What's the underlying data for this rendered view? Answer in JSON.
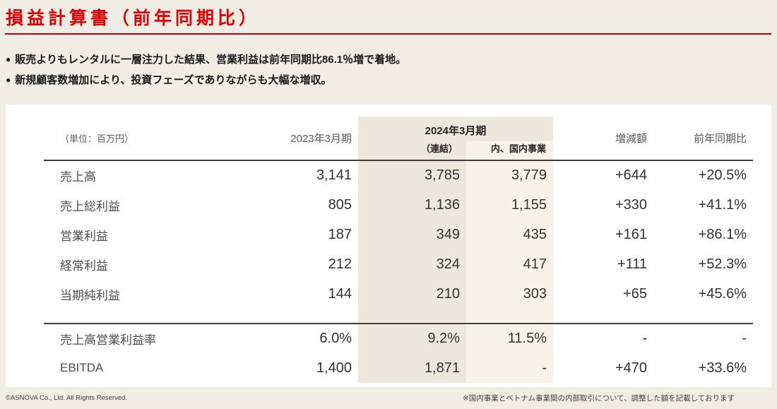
{
  "page": {
    "title": "損益計算書（前年同期比）",
    "bullets": [
      "販売よりもレンタルに一層注力した結果、営業利益は前年同期比86.1％増で着地。",
      "新規顧客数増加により、投資フェーズでありながらも大幅な増収。"
    ],
    "footer_left": "©ASNOVA Co., Ltd. All Rights Reserved.",
    "footer_note": "※国内事業とベトナム事業間の内部取引について、調整した額を記載しております"
  },
  "table": {
    "unit_label": "（単位：百万円）",
    "col_2023": "2023年3月期",
    "col_2024": "2024年3月期",
    "col_2024_sub_consolidated": "（連結）",
    "col_2024_sub_domestic": "内、国内事業",
    "col_diff": "増減額",
    "col_yoy": "前年同期比",
    "rows": [
      {
        "label": "売上高",
        "y2023": "3,141",
        "consolidated": "3,785",
        "domestic": "3,779",
        "diff": "+644",
        "yoy": "+20.5%"
      },
      {
        "label": "売上総利益",
        "y2023": "805",
        "consolidated": "1,136",
        "domestic": "1,155",
        "diff": "+330",
        "yoy": "+41.1%"
      },
      {
        "label": "営業利益",
        "y2023": "187",
        "consolidated": "349",
        "domestic": "435",
        "diff": "+161",
        "yoy": "+86.1%"
      },
      {
        "label": "経常利益",
        "y2023": "212",
        "consolidated": "324",
        "domestic": "417",
        "diff": "+111",
        "yoy": "+52.3%"
      },
      {
        "label": "当期純利益",
        "y2023": "144",
        "consolidated": "210",
        "domestic": "303",
        "diff": "+65",
        "yoy": "+45.6%"
      }
    ],
    "ratio_rows": [
      {
        "label": "売上高営業利益率",
        "y2023": "6.0%",
        "consolidated": "9.2%",
        "domestic": "11.5%",
        "diff": "-",
        "yoy": "-"
      },
      {
        "label": "EBITDA",
        "y2023": "1,400",
        "consolidated": "1,871",
        "domestic": "-",
        "diff": "+470",
        "yoy": "+33.6%"
      }
    ]
  },
  "colors": {
    "page_background": "#F0EDE5",
    "card_background": "#FFFFFF",
    "title_red": "#DC0000",
    "rule_red": "#C00000",
    "shade_consolidated": "#ECE8DD",
    "shade_domestic": "#F6F3EA",
    "line_dark": "#3F3F3F",
    "bullet_glyph": "●"
  }
}
